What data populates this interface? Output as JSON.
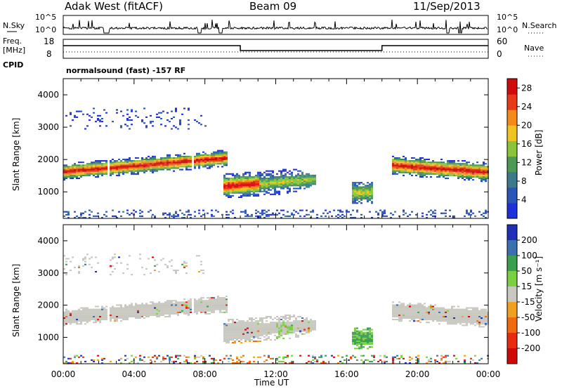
{
  "header": {
    "station": "Adak West (fitACF)",
    "beam": "Beam 09",
    "date": "11/Sep/2013"
  },
  "top_panel": {
    "left_label_sky": "N.Sky",
    "left_label_freq": "Freq.",
    "left_label_freq_unit": "[MHz]",
    "left_label_cpid": "CPID",
    "right_label_search": "N.Search",
    "right_label_nave": "Nave",
    "noise_ticks": [
      "10^5",
      "10^0"
    ],
    "freq_ticks": [
      "18",
      "8"
    ],
    "nave_ticks": [
      "60",
      "0"
    ],
    "cpid_text": "normalsound (fast) -157 RF"
  },
  "chart_data": [
    {
      "type": "heatmap",
      "panel": "power",
      "ylabel": "Slant Range [km]",
      "yticks": [
        1000,
        2000,
        3000,
        4000
      ],
      "ylim": [
        180,
        4500
      ],
      "xlim": [
        0,
        24
      ],
      "colorbar_label": "Power [dB]",
      "colorbar_ticks": [
        4,
        8,
        12,
        16,
        20,
        24,
        28
      ],
      "colorbar_range": [
        0,
        30
      ],
      "colors": [
        "#1f2fdc",
        "#2a55b8",
        "#3a7a8a",
        "#4d9a55",
        "#8ac43a",
        "#f0c420",
        "#f58a18",
        "#e83a18",
        "#d10a0a"
      ]
    },
    {
      "type": "heatmap",
      "panel": "velocity",
      "ylabel": "Slant Range [km]",
      "yticks": [
        1000,
        2000,
        3000,
        4000
      ],
      "ylim": [
        180,
        4500
      ],
      "xlim": [
        0,
        24
      ],
      "xticks": [
        "00:00",
        "04:00",
        "08:00",
        "12:00",
        "16:00",
        "20:00",
        "00:00"
      ],
      "xlabel": "Time UT",
      "colorbar_label": "Velocity [m s⁻¹]",
      "colorbar_ticks": [
        200,
        100,
        50,
        15,
        -15,
        -50,
        -100,
        -200
      ],
      "colors": [
        "#1e2fb8",
        "#3a70b0",
        "#3aa050",
        "#7ad040",
        "#c8c8c0",
        "#f0a020",
        "#f06a10",
        "#e82a10",
        "#d00808"
      ]
    }
  ]
}
